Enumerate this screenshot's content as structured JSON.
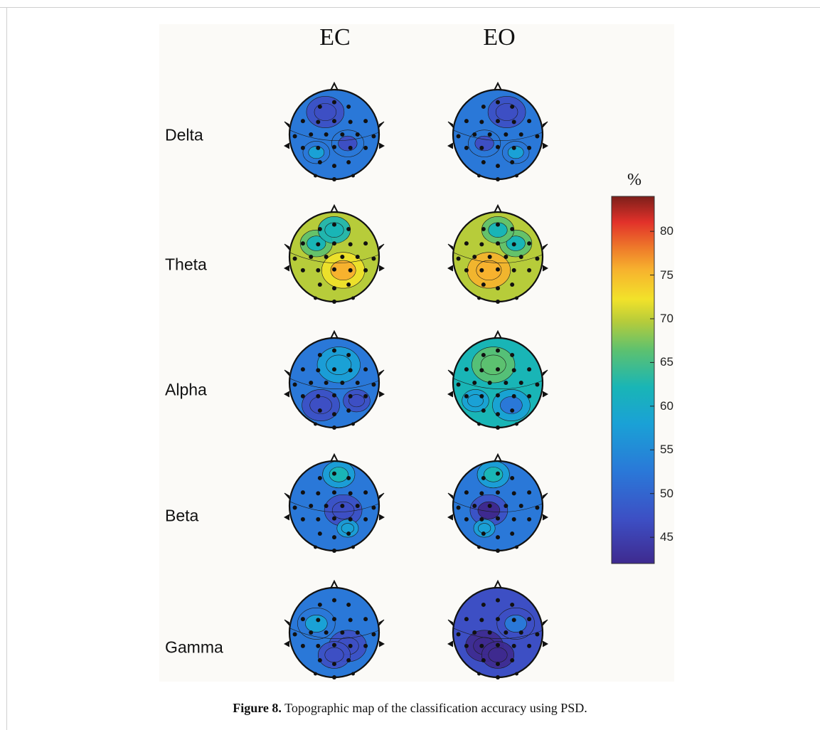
{
  "figure": {
    "columns": [
      "EC",
      "EO"
    ],
    "rows": [
      "Delta",
      "Theta",
      "Alpha",
      "Beta",
      "Gamma"
    ],
    "caption_label": "Figure 8.",
    "caption_text": " Topographic map of the classification accuracy using PSD."
  },
  "colorbar": {
    "unit": "%",
    "ticks": [
      "80",
      "75",
      "70",
      "65",
      "60",
      "55",
      "50",
      "45"
    ],
    "tick_values": [
      80,
      75,
      70,
      65,
      60,
      55,
      50,
      45
    ],
    "range": [
      42,
      84
    ],
    "colormap": "parula-like"
  },
  "chart_data": {
    "type": "heatmap",
    "description_kind": "scalp topographic maps",
    "x": [
      "EC",
      "EO"
    ],
    "y": [
      "Delta",
      "Theta",
      "Alpha",
      "Beta",
      "Gamma"
    ],
    "approx_mean_accuracy_percent": [
      [
        55,
        55
      ],
      [
        70,
        71
      ],
      [
        54,
        63
      ],
      [
        54,
        53
      ],
      [
        53,
        48
      ]
    ],
    "colorbar_ticks": [
      45,
      50,
      55,
      60,
      65,
      70,
      75,
      80
    ],
    "colorbar_range": [
      42,
      84
    ]
  }
}
